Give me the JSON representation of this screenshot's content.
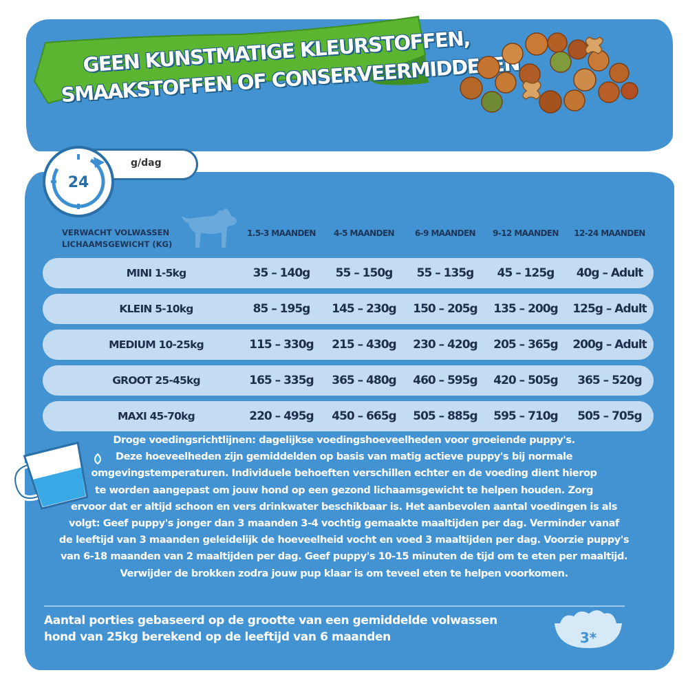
{
  "banner": {
    "line1": "GEEN KUNSTMATIGE KLEURSTOFFEN,",
    "line2": "SMAAKSTOFFEN OF CONSERVEERMIDDELEN"
  },
  "clock": {
    "value": "24",
    "unit": "g/dag",
    "icon": "clock-24-icon"
  },
  "table": {
    "weight_header": [
      "VERWACHT VOLWASSEN",
      "LICHAAMSGEWICHT (KG)"
    ],
    "columns": [
      "1.5-3 MAANDEN",
      "4-5 MAANDEN",
      "6-9 MAANDEN",
      "9-12 MAANDEN",
      "12-24 MAANDEN"
    ],
    "rows": [
      {
        "label": "MINI 1-5kg",
        "values": [
          "35 – 140g",
          "55 – 150g",
          "55 – 135g",
          "45 – 125g",
          "40g – Adult"
        ]
      },
      {
        "label": "KLEIN 5-10kg",
        "values": [
          "85 – 195g",
          "145 – 230g",
          "150 – 205g",
          "135 – 200g",
          "125g – Adult"
        ]
      },
      {
        "label": "MEDIUM 10-25kg",
        "values": [
          "115 – 330g",
          "215 – 430g",
          "230 – 420g",
          "205 – 365g",
          "200g – Adult"
        ]
      },
      {
        "label": "GROOT 25-45kg",
        "values": [
          "165 – 335g",
          "365 – 480g",
          "460 – 595g",
          "420 – 505g",
          "365 – 520g"
        ]
      },
      {
        "label": "MAXI 45-70kg",
        "values": [
          "220 – 495g",
          "450 – 665g",
          "505 – 885g",
          "595 – 710g",
          "505 – 705g"
        ]
      }
    ]
  },
  "guidelines": {
    "lines": [
      "Droge voedingsrichtlijnen: dagelijkse voedingshoeveelheden voor groeiende puppy's.",
      "Deze hoeveelheden zijn gemiddelden op basis van matig actieve puppy's bij normale",
      "omgevingstemperaturen. Individuele behoeften verschillen echter en de voeding dient hierop",
      "te worden aangepast om jouw hond op een gezond lichaamsgewicht te helpen houden. Zorg",
      "ervoor dat er altijd schoon en vers drinkwater beschikbaar is. Het aanbevolen aantal voedingen is als",
      "volgt: Geef puppy's jonger dan 3 maanden 3-4 vochtig gemaakte maaltijden per dag. Verminder vanaf",
      "de leeftijd van 3 maanden geleidelijk de hoeveelheid vocht en voed 3 maaltijden per dag. Voorzie puppy's",
      "van 6-18 maanden van 2 maaltijden per dag. Geef puppy's 10-15 minuten de tijd om te eten per maaltijd.",
      "Verwijder de brokken zodra jouw pup klaar is om teveel eten te helpen voorkomen."
    ]
  },
  "portions": {
    "line1": "Aantal porties gebaseerd op de grootte van een gemiddelde volwassen",
    "line2": "hond van 25kg berekend op de leeftijd van 6 maanden",
    "badge": "3*"
  },
  "colors": {
    "panel": "#4393d2",
    "row": "#c4dcf1",
    "banner": "#5cb531",
    "text_dark": "#1d2f4a"
  }
}
